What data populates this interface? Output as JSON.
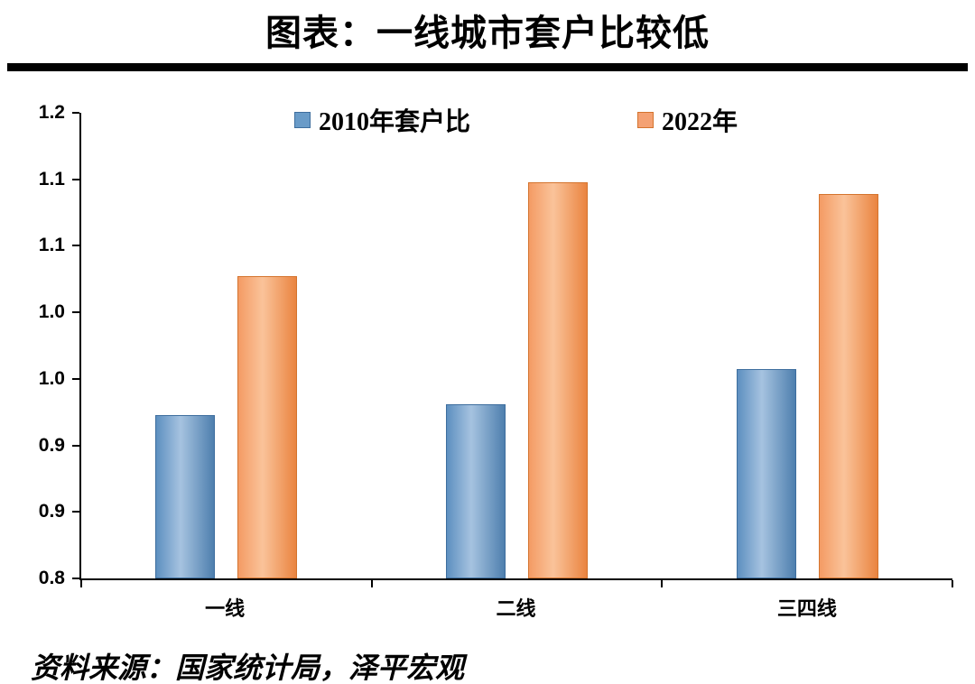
{
  "page": {
    "title": "图表：一线城市套户比较低",
    "source_note": "资料来源：国家统计局，泽平宏观"
  },
  "chart_data": {
    "type": "bar",
    "title": "图表：一线城市套户比较低",
    "categories": [
      "一线",
      "二线",
      "三四线"
    ],
    "series": [
      {
        "name": "2010年套户比",
        "values": [
          0.94,
          0.95,
          0.98
        ],
        "colors": {
          "left": "#5D8FC0",
          "mid": "#A6C3E0",
          "right": "#4E7FAE",
          "border": "#3E6E9E",
          "swatch": "#699BC8"
        }
      },
      {
        "name": "2022年",
        "values": [
          1.06,
          1.14,
          1.13
        ],
        "colors": {
          "left": "#F49B64",
          "mid": "#FAC39A",
          "right": "#EA8440",
          "border": "#D4742E",
          "swatch": "#F4A173"
        }
      }
    ],
    "xlabel": "",
    "ylabel": "",
    "ylim": [
      0.8,
      1.2
    ],
    "y_tick_labels": [
      "1.2",
      "1.1",
      "1.1",
      "1.0",
      "1.0",
      "0.9",
      "0.9",
      "0.8"
    ],
    "grid": false,
    "legend_position": "top-center",
    "source": "资料来源：国家统计局，泽平宏观"
  }
}
